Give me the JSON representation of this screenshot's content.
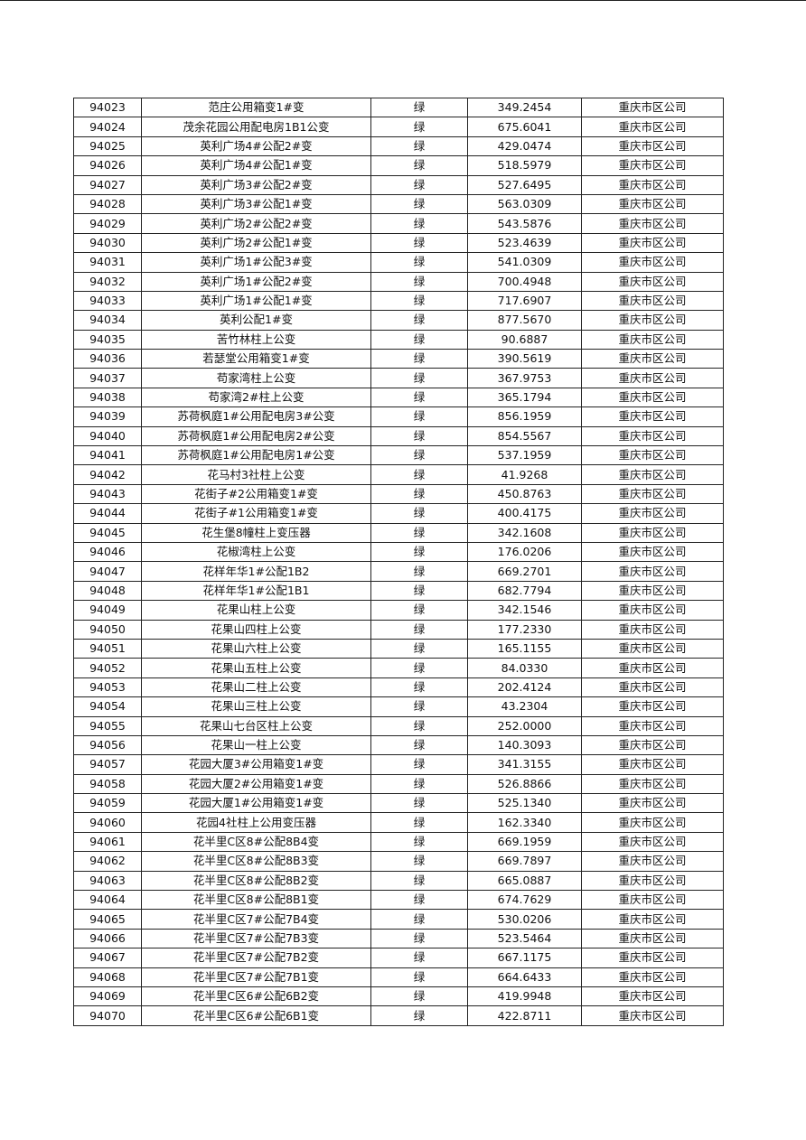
{
  "table": {
    "rows": [
      [
        "94023",
        "范庄公用箱变1#变",
        "绿",
        "349.2454",
        "重庆市区公司"
      ],
      [
        "94024",
        "茂余花园公用配电房1B1公变",
        "绿",
        "675.6041",
        "重庆市区公司"
      ],
      [
        "94025",
        "英利广场4#公配2#变",
        "绿",
        "429.0474",
        "重庆市区公司"
      ],
      [
        "94026",
        "英利广场4#公配1#变",
        "绿",
        "518.5979",
        "重庆市区公司"
      ],
      [
        "94027",
        "英利广场3#公配2#变",
        "绿",
        "527.6495",
        "重庆市区公司"
      ],
      [
        "94028",
        "英利广场3#公配1#变",
        "绿",
        "563.0309",
        "重庆市区公司"
      ],
      [
        "94029",
        "英利广场2#公配2#变",
        "绿",
        "543.5876",
        "重庆市区公司"
      ],
      [
        "94030",
        "英利广场2#公配1#变",
        "绿",
        "523.4639",
        "重庆市区公司"
      ],
      [
        "94031",
        "英利广场1#公配3#变",
        "绿",
        "541.0309",
        "重庆市区公司"
      ],
      [
        "94032",
        "英利广场1#公配2#变",
        "绿",
        "700.4948",
        "重庆市区公司"
      ],
      [
        "94033",
        "英利广场1#公配1#变",
        "绿",
        "717.6907",
        "重庆市区公司"
      ],
      [
        "94034",
        "英利公配1#变",
        "绿",
        "877.5670",
        "重庆市区公司"
      ],
      [
        "94035",
        "苦竹林柱上公变",
        "绿",
        "90.6887",
        "重庆市区公司"
      ],
      [
        "94036",
        "若瑟堂公用箱变1#变",
        "绿",
        "390.5619",
        "重庆市区公司"
      ],
      [
        "94037",
        "苟家湾柱上公变",
        "绿",
        "367.9753",
        "重庆市区公司"
      ],
      [
        "94038",
        "苟家湾2#柱上公变",
        "绿",
        "365.1794",
        "重庆市区公司"
      ],
      [
        "94039",
        "苏荷枫庭1#公用配电房3#公变",
        "绿",
        "856.1959",
        "重庆市区公司"
      ],
      [
        "94040",
        "苏荷枫庭1#公用配电房2#公变",
        "绿",
        "854.5567",
        "重庆市区公司"
      ],
      [
        "94041",
        "苏荷枫庭1#公用配电房1#公变",
        "绿",
        "537.1959",
        "重庆市区公司"
      ],
      [
        "94042",
        "花马村3社柱上公变",
        "绿",
        "41.9268",
        "重庆市区公司"
      ],
      [
        "94043",
        "花街子#2公用箱变1#变",
        "绿",
        "450.8763",
        "重庆市区公司"
      ],
      [
        "94044",
        "花街子#1公用箱变1#变",
        "绿",
        "400.4175",
        "重庆市区公司"
      ],
      [
        "94045",
        "花生堡8幢柱上变压器",
        "绿",
        "342.1608",
        "重庆市区公司"
      ],
      [
        "94046",
        "花椒湾柱上公变",
        "绿",
        "176.0206",
        "重庆市区公司"
      ],
      [
        "94047",
        "花样年华1#公配1B2",
        "绿",
        "669.2701",
        "重庆市区公司"
      ],
      [
        "94048",
        "花样年华1#公配1B1",
        "绿",
        "682.7794",
        "重庆市区公司"
      ],
      [
        "94049",
        "花果山柱上公变",
        "绿",
        "342.1546",
        "重庆市区公司"
      ],
      [
        "94050",
        "花果山四柱上公变",
        "绿",
        "177.2330",
        "重庆市区公司"
      ],
      [
        "94051",
        "花果山六柱上公变",
        "绿",
        "165.1155",
        "重庆市区公司"
      ],
      [
        "94052",
        "花果山五柱上公变",
        "绿",
        "84.0330",
        "重庆市区公司"
      ],
      [
        "94053",
        "花果山二柱上公变",
        "绿",
        "202.4124",
        "重庆市区公司"
      ],
      [
        "94054",
        "花果山三柱上公变",
        "绿",
        "43.2304",
        "重庆市区公司"
      ],
      [
        "94055",
        "花果山七台区柱上公变",
        "绿",
        "252.0000",
        "重庆市区公司"
      ],
      [
        "94056",
        "花果山一柱上公变",
        "绿",
        "140.3093",
        "重庆市区公司"
      ],
      [
        "94057",
        "花园大厦3#公用箱变1#变",
        "绿",
        "341.3155",
        "重庆市区公司"
      ],
      [
        "94058",
        "花园大厦2#公用箱变1#变",
        "绿",
        "526.8866",
        "重庆市区公司"
      ],
      [
        "94059",
        "花园大厦1#公用箱变1#变",
        "绿",
        "525.1340",
        "重庆市区公司"
      ],
      [
        "94060",
        "花园4社柱上公用变压器",
        "绿",
        "162.3340",
        "重庆市区公司"
      ],
      [
        "94061",
        "花半里C区8#公配8B4变",
        "绿",
        "669.1959",
        "重庆市区公司"
      ],
      [
        "94062",
        "花半里C区8#公配8B3变",
        "绿",
        "669.7897",
        "重庆市区公司"
      ],
      [
        "94063",
        "花半里C区8#公配8B2变",
        "绿",
        "665.0887",
        "重庆市区公司"
      ],
      [
        "94064",
        "花半里C区8#公配8B1变",
        "绿",
        "674.7629",
        "重庆市区公司"
      ],
      [
        "94065",
        "花半里C区7#公配7B4变",
        "绿",
        "530.0206",
        "重庆市区公司"
      ],
      [
        "94066",
        "花半里C区7#公配7B3变",
        "绿",
        "523.5464",
        "重庆市区公司"
      ],
      [
        "94067",
        "花半里C区7#公配7B2变",
        "绿",
        "667.1175",
        "重庆市区公司"
      ],
      [
        "94068",
        "花半里C区7#公配7B1变",
        "绿",
        "664.6433",
        "重庆市区公司"
      ],
      [
        "94069",
        "花半里C区6#公配6B2变",
        "绿",
        "419.9948",
        "重庆市区公司"
      ],
      [
        "94070",
        "花半里C区6#公配6B1变",
        "绿",
        "422.8711",
        "重庆市区公司"
      ]
    ]
  }
}
